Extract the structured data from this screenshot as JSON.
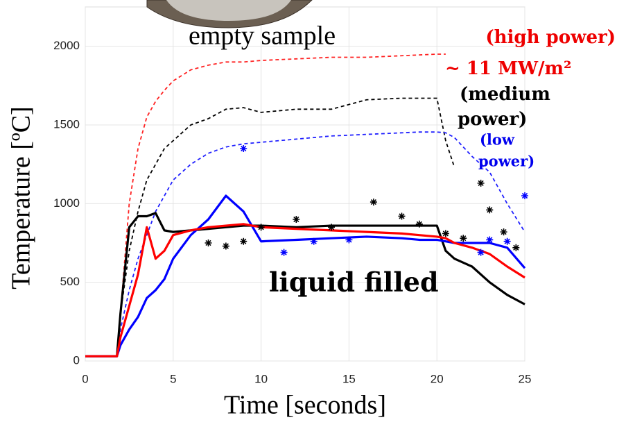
{
  "chart_data": {
    "type": "line",
    "xlabel": "Time [seconds]",
    "ylabel": "Temperature [ºC]",
    "xlim": [
      0,
      25
    ],
    "ylim": [
      0,
      2250
    ],
    "xticks": [
      0,
      5,
      10,
      15,
      20,
      25
    ],
    "yticks": [
      0,
      500,
      1000,
      1500,
      2000
    ],
    "grid": true,
    "annotations": [
      {
        "text": "empty sample",
        "color": "#000000"
      },
      {
        "text": "(high power)",
        "color": "#ee0000"
      },
      {
        "text": "~ 11 MW/m²",
        "color": "#ee0000"
      },
      {
        "text": "(medium",
        "color": "#000000"
      },
      {
        "text": "power)",
        "color": "#000000"
      },
      {
        "text": "(low",
        "color": "#0000ee"
      },
      {
        "text": "power)",
        "color": "#0000ee"
      },
      {
        "text": "liquid filled",
        "color": "#000000"
      }
    ],
    "x": [
      0,
      1,
      1.8,
      2,
      2.5,
      3,
      3.5,
      4,
      4.5,
      5,
      6,
      7,
      8,
      9,
      10,
      12,
      14,
      16,
      18,
      19,
      20,
      20.5,
      21,
      22,
      23,
      24,
      25
    ],
    "series": [
      {
        "color": "#ff2020",
        "style": "dashed",
        "values": [
          30,
          30,
          30,
          300,
          1000,
          1350,
          1550,
          1650,
          1720,
          1780,
          1850,
          1880,
          1900,
          1900,
          1910,
          1920,
          1930,
          1930,
          1940,
          1945,
          1950,
          1950,
          null,
          null,
          null,
          null,
          null
        ]
      },
      {
        "color": "#000000",
        "style": "dashed",
        "values": [
          30,
          30,
          30,
          300,
          700,
          950,
          1150,
          1250,
          1350,
          1400,
          1500,
          1540,
          1600,
          1610,
          1580,
          1600,
          1600,
          1660,
          1670,
          1670,
          1670,
          1400,
          1230,
          null,
          null,
          null,
          null
        ]
      },
      {
        "color": "#2020ff",
        "style": "dashed",
        "values": [
          30,
          30,
          30,
          200,
          450,
          650,
          800,
          950,
          1050,
          1150,
          1250,
          1320,
          1360,
          1380,
          1390,
          1410,
          1430,
          1440,
          1450,
          1455,
          1455,
          1450,
          1420,
          1300,
          1200,
          1000,
          820
        ]
      },
      {
        "color": "#000000",
        "style": "solid",
        "values": [
          30,
          30,
          30,
          300,
          850,
          920,
          920,
          940,
          830,
          820,
          830,
          840,
          850,
          860,
          860,
          850,
          860,
          860,
          860,
          860,
          860,
          700,
          650,
          600,
          500,
          420,
          360
        ]
      },
      {
        "color": "#0000ff",
        "style": "solid",
        "values": [
          30,
          30,
          30,
          100,
          200,
          280,
          400,
          450,
          520,
          650,
          800,
          900,
          1050,
          950,
          760,
          770,
          780,
          790,
          780,
          770,
          770,
          760,
          750,
          750,
          750,
          720,
          590
        ]
      },
      {
        "color": "#ff0000",
        "style": "solid",
        "values": [
          30,
          30,
          30,
          150,
          350,
          550,
          850,
          650,
          700,
          800,
          830,
          850,
          860,
          870,
          850,
          840,
          830,
          820,
          810,
          800,
          790,
          780,
          750,
          720,
          680,
          600,
          530
        ]
      },
      {
        "color": "#000000",
        "style": "markers",
        "x": [
          7,
          8,
          9,
          10,
          12,
          14,
          16.4,
          18,
          19,
          20.5,
          21.5,
          22.5,
          23,
          23.8,
          24.5
        ],
        "values": [
          750,
          730,
          760,
          850,
          900,
          850,
          1010,
          920,
          870,
          810,
          780,
          1130,
          960,
          820,
          720
        ]
      },
      {
        "color": "#0000ff",
        "style": "markers",
        "x": [
          9,
          11.3,
          13,
          15,
          22.5,
          23,
          24,
          25
        ],
        "values": [
          1350,
          690,
          760,
          770,
          690,
          770,
          760,
          1050
        ]
      }
    ]
  }
}
